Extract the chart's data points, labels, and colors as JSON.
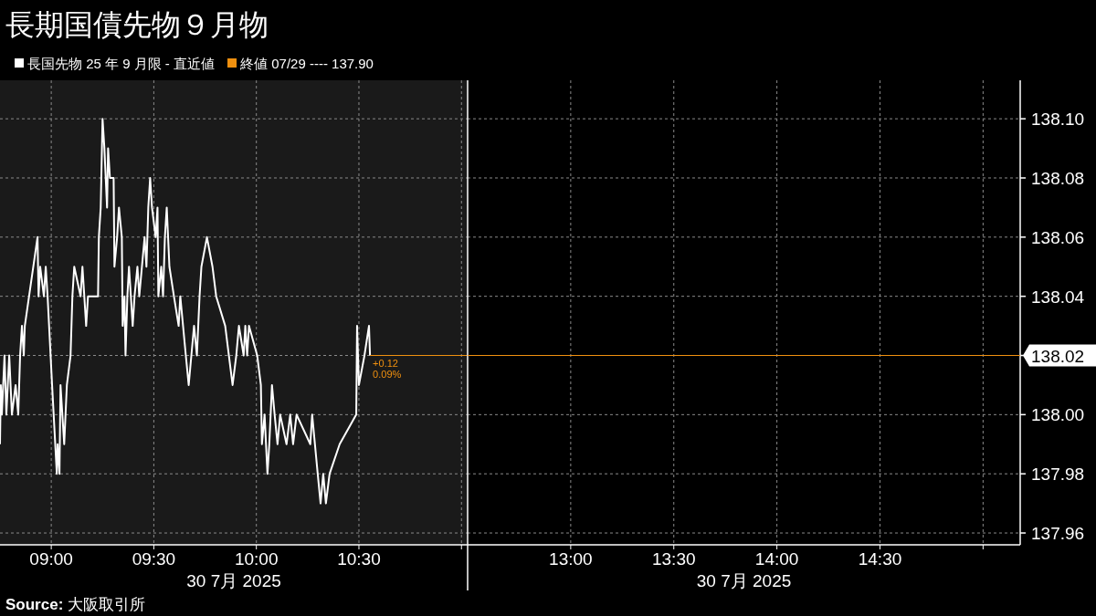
{
  "chart_data": [
    {
      "type": "line",
      "title": "長期国債先物９月物",
      "xlabel": "30 7月 2025",
      "legend": "top left",
      "grid": true,
      "tick_labels": "x",
      "xlim": [
        8.75,
        11.03
      ],
      "ylim": [
        137.956,
        138.113
      ],
      "xticks": [
        {
          "value": 9,
          "label": "09:00"
        },
        {
          "value": 9.5,
          "label": "09:30"
        },
        {
          "value": 10,
          "label": "10:00"
        },
        {
          "value": 10.5,
          "label": "10:30"
        },
        {
          "value": 11,
          "label": null
        }
      ],
      "series": [
        {
          "name": "長国先物 25 年 9 月限 - 直近値",
          "color": "#ffffff",
          "x": [
            8.75,
            8.754,
            8.759,
            8.772,
            8.781,
            8.795,
            8.808,
            8.826,
            8.839,
            8.848,
            8.857,
            8.866,
            8.871,
            8.933,
            8.938,
            8.946,
            8.964,
            8.973,
            8.982,
            9.004,
            9.027,
            9.031,
            9.04,
            9.045,
            9.063,
            9.076,
            9.094,
            9.103,
            9.112,
            9.143,
            9.152,
            9.17,
            9.179,
            9.228,
            9.232,
            9.241,
            9.25,
            9.259,
            9.272,
            9.277,
            9.286,
            9.304,
            9.308,
            9.321,
            9.33,
            9.344,
            9.348,
            9.357,
            9.362,
            9.371,
            9.379,
            9.388,
            9.397,
            9.406,
            9.42,
            9.429,
            9.442,
            9.455,
            9.464,
            9.473,
            9.482,
            9.491,
            9.509,
            9.518,
            9.522,
            9.536,
            9.545,
            9.554,
            9.563,
            9.576,
            9.598,
            9.621,
            9.629,
            9.656,
            9.67,
            9.683,
            9.696,
            9.71,
            9.723,
            9.732,
            9.759,
            9.786,
            9.804,
            9.848,
            9.866,
            9.884,
            9.902,
            9.915,
            9.938,
            9.946,
            9.955,
            9.964,
            10.004,
            10.022,
            10.027,
            10.04,
            10.054,
            10.063,
            10.076,
            10.089,
            10.103,
            10.116,
            10.147,
            10.165,
            10.179,
            10.196,
            10.263,
            10.272,
            10.299,
            10.313,
            10.326,
            10.339,
            10.357,
            10.406,
            10.487,
            10.491,
            10.5,
            10.527,
            10.549,
            10.554
          ],
          "values": [
            137.99,
            138.01,
            138.0,
            138.02,
            138.0,
            138.02,
            138.0,
            138.01,
            138.0,
            138.02,
            138.03,
            138.02,
            138.03,
            138.06,
            138.04,
            138.05,
            138.04,
            138.05,
            138.04,
            138.01,
            137.98,
            137.99,
            137.98,
            138.01,
            137.99,
            138.01,
            138.02,
            138.04,
            138.05,
            138.04,
            138.05,
            138.03,
            138.04,
            138.04,
            138.06,
            138.07,
            138.1,
            138.09,
            138.07,
            138.09,
            138.08,
            138.08,
            138.05,
            138.06,
            138.07,
            138.06,
            138.03,
            138.04,
            138.02,
            138.04,
            138.05,
            138.04,
            138.03,
            138.04,
            138.05,
            138.04,
            138.05,
            138.06,
            138.05,
            138.07,
            138.08,
            138.07,
            138.06,
            138.07,
            138.04,
            138.05,
            138.04,
            138.06,
            138.07,
            138.05,
            138.04,
            138.03,
            138.04,
            138.02,
            138.01,
            138.02,
            138.03,
            138.02,
            138.04,
            138.05,
            138.06,
            138.05,
            138.04,
            138.03,
            138.02,
            138.01,
            138.02,
            138.03,
            138.02,
            138.03,
            138.02,
            138.03,
            138.02,
            138.01,
            137.99,
            138.0,
            137.98,
            137.99,
            138.01,
            138.0,
            137.99,
            138.0,
            137.99,
            138.0,
            137.99,
            138.0,
            137.99,
            138.0,
            137.98,
            137.97,
            137.98,
            137.97,
            137.98,
            137.99,
            138.0,
            138.03,
            138.01,
            138.02,
            138.03,
            138.02
          ]
        }
      ],
      "ref_lines": [
        {
          "axis": "y",
          "value": 138.02,
          "label": null,
          "color": "#f0900f"
        }
      ],
      "annotations": [
        "終値 07/29 ---- 137.90",
        {
          "text": "+0.12",
          "x": 10.554,
          "y": 138.02
        },
        {
          "text": "0.09%",
          "x": 10.554,
          "y": 138.02
        },
        "**Source:** 大阪取引所"
      ]
    },
    {
      "type": "line",
      "xlabel": "30 7月 2025",
      "grid": true,
      "xlim": [
        12.5,
        15.18
      ],
      "ylim": [
        137.956,
        138.113
      ],
      "xticks": [
        {
          "value": 13,
          "label": "13:00"
        },
        {
          "value": 13.5,
          "label": "13:30"
        },
        {
          "value": 14,
          "label": "14:00"
        },
        {
          "value": 14.5,
          "label": "14:30"
        },
        {
          "value": 15,
          "label": null
        }
      ],
      "yticks": [
        137.96,
        137.98,
        {
          "value": 138.0,
          "label": "138.00"
        },
        138.02,
        138.04,
        138.06,
        138.08,
        {
          "value": 138.1,
          "label": "138.10"
        }
      ],
      "ref_lines": [
        {
          "axis": "y",
          "value": 138.02,
          "label": "138.02",
          "color": "#f0900f"
        }
      ]
    }
  ]
}
